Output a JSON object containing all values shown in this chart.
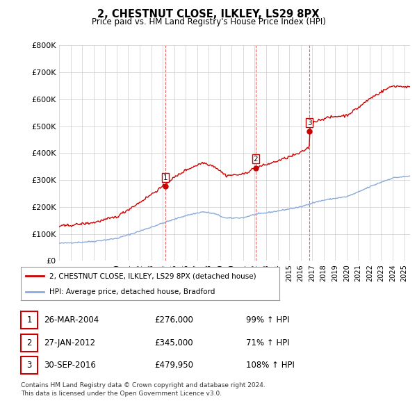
{
  "title": "2, CHESTNUT CLOSE, ILKLEY, LS29 8PX",
  "subtitle": "Price paid vs. HM Land Registry's House Price Index (HPI)",
  "legend_line1": "2, CHESTNUT CLOSE, ILKLEY, LS29 8PX (detached house)",
  "legend_line2": "HPI: Average price, detached house, Bradford",
  "house_color": "#cc0000",
  "hpi_color": "#88aadd",
  "vline_color": "#cc0000",
  "ylabel_vals": [
    "£0",
    "£100K",
    "£200K",
    "£300K",
    "£400K",
    "£500K",
    "£600K",
    "£700K",
    "£800K"
  ],
  "yticks": [
    0,
    100000,
    200000,
    300000,
    400000,
    500000,
    600000,
    700000,
    800000
  ],
  "sales": [
    {
      "num": 1,
      "date_num": 2004.23,
      "price": 276000
    },
    {
      "num": 2,
      "date_num": 2012.08,
      "price": 345000
    },
    {
      "num": 3,
      "date_num": 2016.75,
      "price": 479950
    }
  ],
  "table_rows": [
    {
      "num": "1",
      "date": "26-MAR-2004",
      "price": "£276,000",
      "pct": "99% ↑ HPI"
    },
    {
      "num": "2",
      "date": "27-JAN-2012",
      "price": "£345,000",
      "pct": "71% ↑ HPI"
    },
    {
      "num": "3",
      "date": "30-SEP-2016",
      "price": "£479,950",
      "pct": "108% ↑ HPI"
    }
  ],
  "footnote1": "Contains HM Land Registry data © Crown copyright and database right 2024.",
  "footnote2": "This data is licensed under the Open Government Licence v3.0.",
  "xmin": 1995,
  "xmax": 2025.5,
  "ymin": 0,
  "ymax": 800000,
  "background_color": "#ffffff",
  "grid_color": "#cccccc"
}
